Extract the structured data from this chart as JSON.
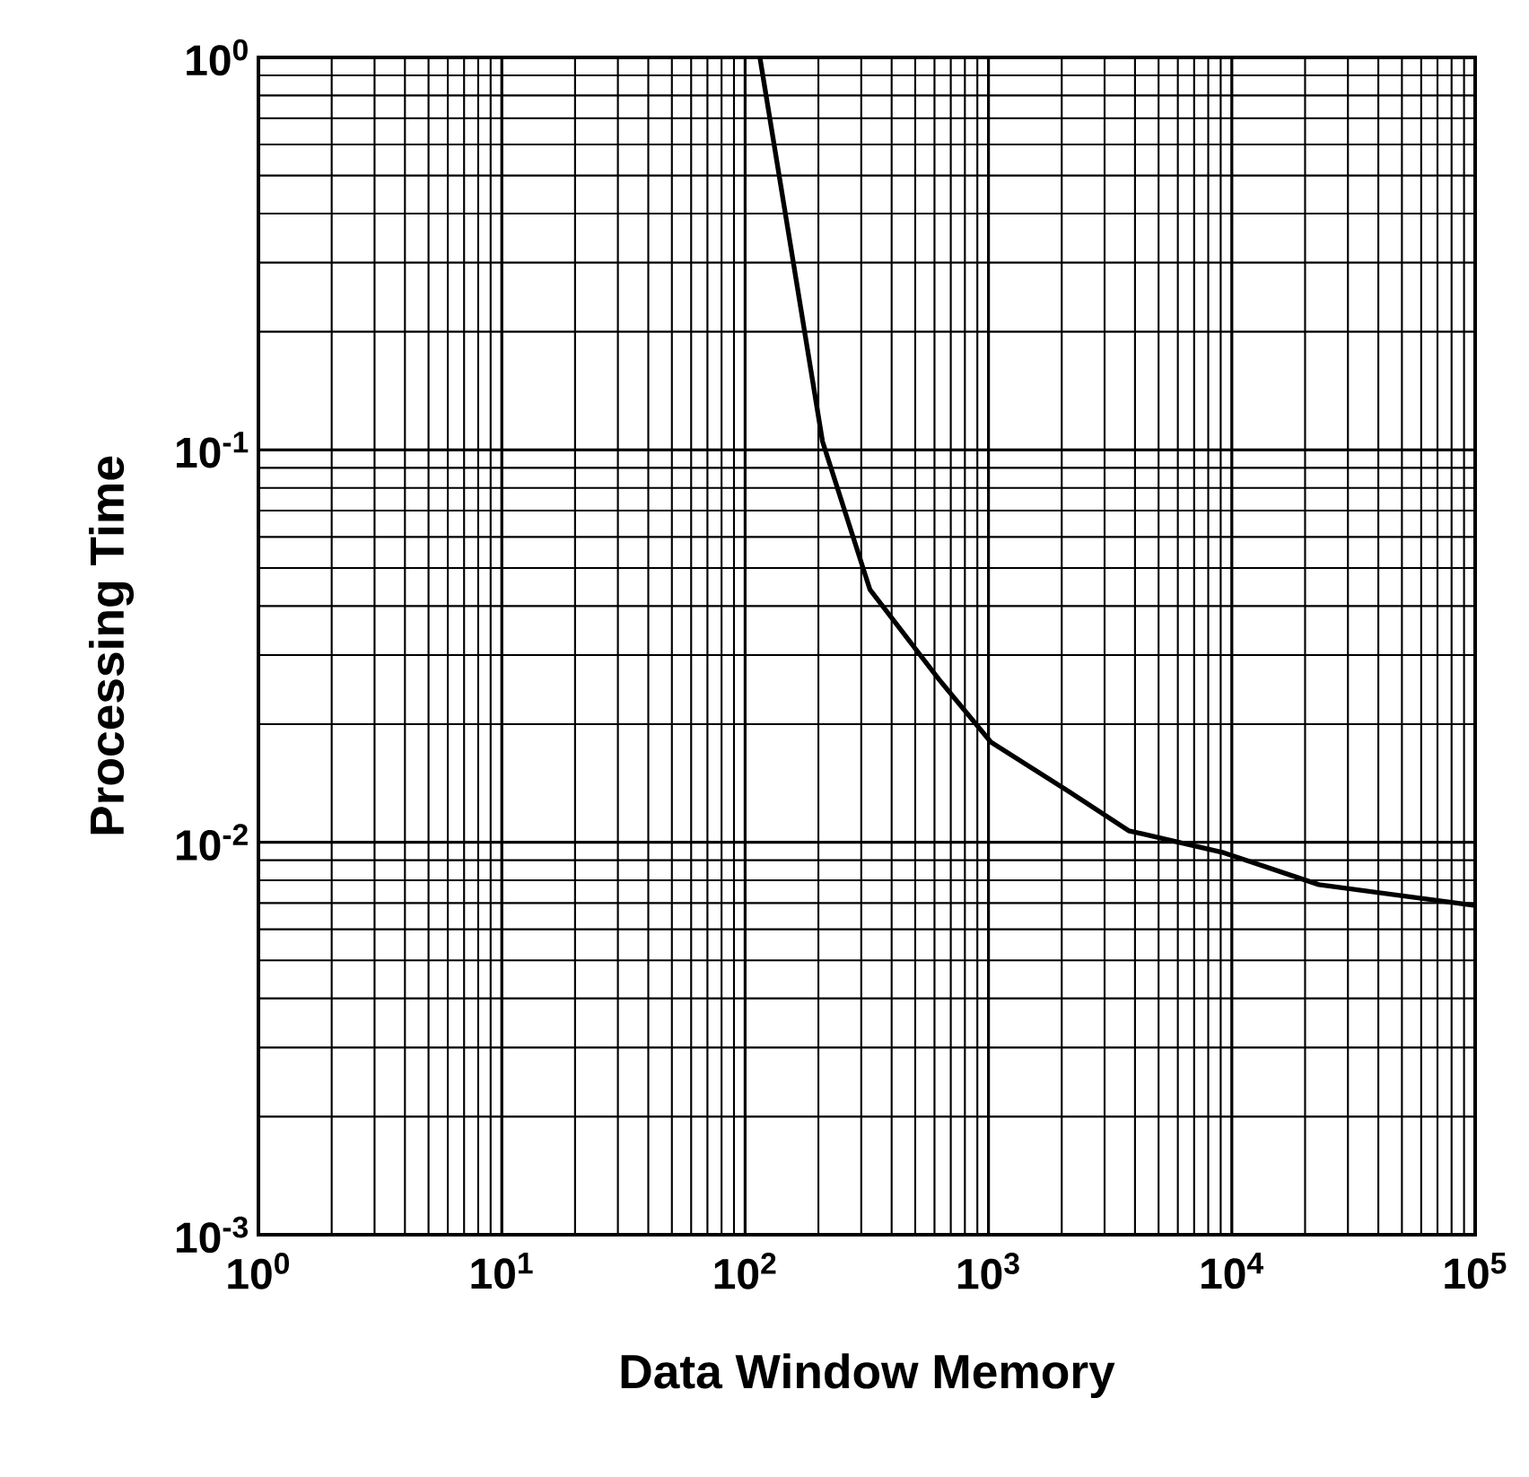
{
  "chart_data": {
    "type": "line",
    "xlabel": "Data Window Memory",
    "ylabel": "Processing Time",
    "log": "xy",
    "grid": true,
    "marker": "none",
    "line_style": "solid",
    "x": [
      115,
      208,
      326,
      626,
      1023,
      2130,
      3770,
      9300,
      22800,
      100000
    ],
    "series": [
      {
        "color": "#000000",
        "values": [
          1,
          0.105,
          0.044,
          0.026,
          0.018,
          0.0135,
          0.0107,
          0.0094,
          0.0078,
          0.0069
        ]
      }
    ],
    "xlim": [
      1,
      100000
    ],
    "ylim": [
      0.001,
      1
    ],
    "xticks": [
      {
        "value": 1,
        "label": "10$^{0}$"
      },
      {
        "value": 10,
        "label": "10$^{1}$"
      },
      {
        "value": 100,
        "label": "10$^{2}$"
      },
      {
        "value": 1000,
        "label": "10$^{3}$"
      },
      {
        "value": 10000,
        "label": "10$^{4}$"
      },
      {
        "value": 100000,
        "label": "10$^{5}$"
      }
    ],
    "yticks": [
      {
        "value": 0.001,
        "label": "10$^{-3}$"
      },
      {
        "value": 0.01,
        "label": "10$^{-2}$"
      },
      {
        "value": 0.1,
        "label": "10$^{-1}$"
      },
      {
        "value": 1,
        "label": "10$^{0}$"
      }
    ]
  }
}
